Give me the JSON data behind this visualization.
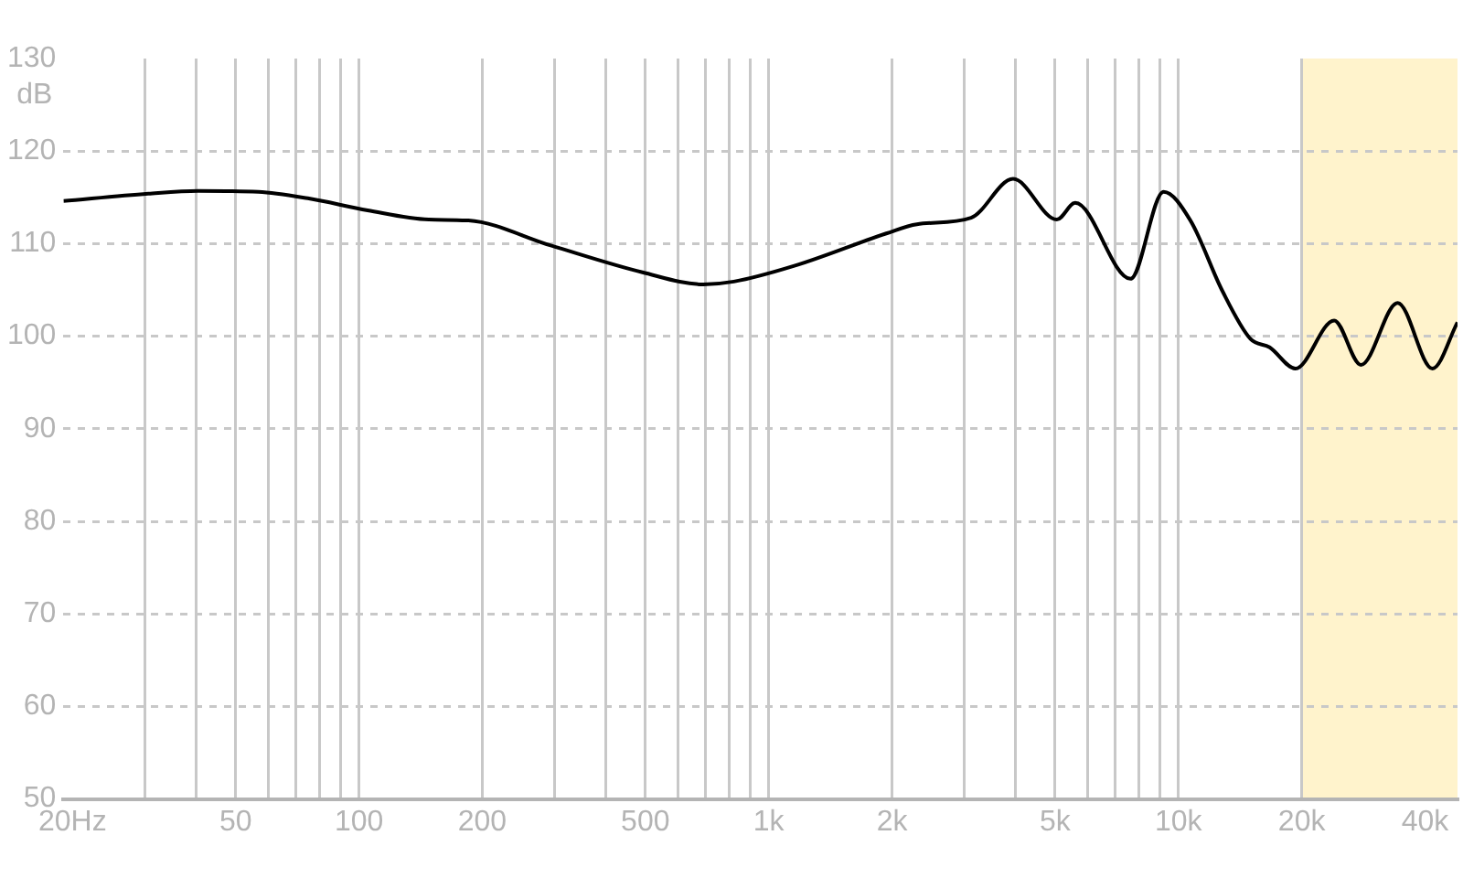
{
  "chart_data": {
    "type": "line",
    "ylabel": "dB",
    "log": "x",
    "x": [
      19,
      30.6,
      40.5,
      56.8,
      75,
      105,
      148,
      185,
      294,
      492,
      692,
      822,
      1155,
      1937,
      2300,
      3120,
      3950,
      5050,
      5600,
      7640,
      9200,
      10700,
      12800,
      15000,
      16700,
      19300,
      24000,
      27900,
      34300,
      41700,
      48000
    ],
    "series": [
      {
        "color": "#000000",
        "values": [
          114.6,
          115.4,
          115.7,
          115.6,
          114.9,
          113.6,
          112.6,
          112.5,
          109.8,
          106.9,
          105.6,
          105.9,
          107.6,
          111.1,
          112.1,
          112.8,
          117.0,
          112.6,
          114.4,
          106.2,
          115.6,
          112.5,
          104.9,
          99.7,
          98.8,
          96.5,
          101.7,
          96.9,
          103.6,
          96.5,
          101.5
        ]
      }
    ],
    "xlim": [
      19,
      48000
    ],
    "ylim": [
      50,
      130
    ],
    "xticks": [
      {
        "value": 20,
        "label": "20Hz"
      },
      {
        "value": 30,
        "label": null
      },
      {
        "value": 40,
        "label": null
      },
      {
        "value": 50,
        "label": "50"
      },
      {
        "value": 60,
        "label": null
      },
      {
        "value": 70,
        "label": null
      },
      {
        "value": 80,
        "label": null
      },
      {
        "value": 90,
        "label": null
      },
      {
        "value": 100,
        "label": "100"
      },
      {
        "value": 200,
        "label": "200"
      },
      {
        "value": 300,
        "label": null
      },
      {
        "value": 400,
        "label": null
      },
      {
        "value": 500,
        "label": "500"
      },
      {
        "value": 600,
        "label": null
      },
      {
        "value": 700,
        "label": null
      },
      {
        "value": 800,
        "label": null
      },
      {
        "value": 900,
        "label": null
      },
      {
        "value": 1000,
        "label": "1k"
      },
      {
        "value": 2000,
        "label": "2k"
      },
      {
        "value": 3000,
        "label": null
      },
      {
        "value": 4000,
        "label": null
      },
      {
        "value": 5000,
        "label": "5k"
      },
      {
        "value": 6000,
        "label": null
      },
      {
        "value": 7000,
        "label": null
      },
      {
        "value": 8000,
        "label": null
      },
      {
        "value": 9000,
        "label": null
      },
      {
        "value": 10000,
        "label": "10k"
      },
      {
        "value": 20000,
        "label": "20k"
      },
      {
        "value": 40000,
        "label": "40k"
      }
    ],
    "yticks": [
      50,
      60,
      70,
      80,
      90,
      100,
      110,
      120,
      130
    ],
    "bands": [
      {
        "axis": "x",
        "from": 20000,
        "to": 48000,
        "color": "#fff3cc"
      }
    ],
    "grid": true,
    "legend": false,
    "marker": "none",
    "line_style": "solid"
  }
}
